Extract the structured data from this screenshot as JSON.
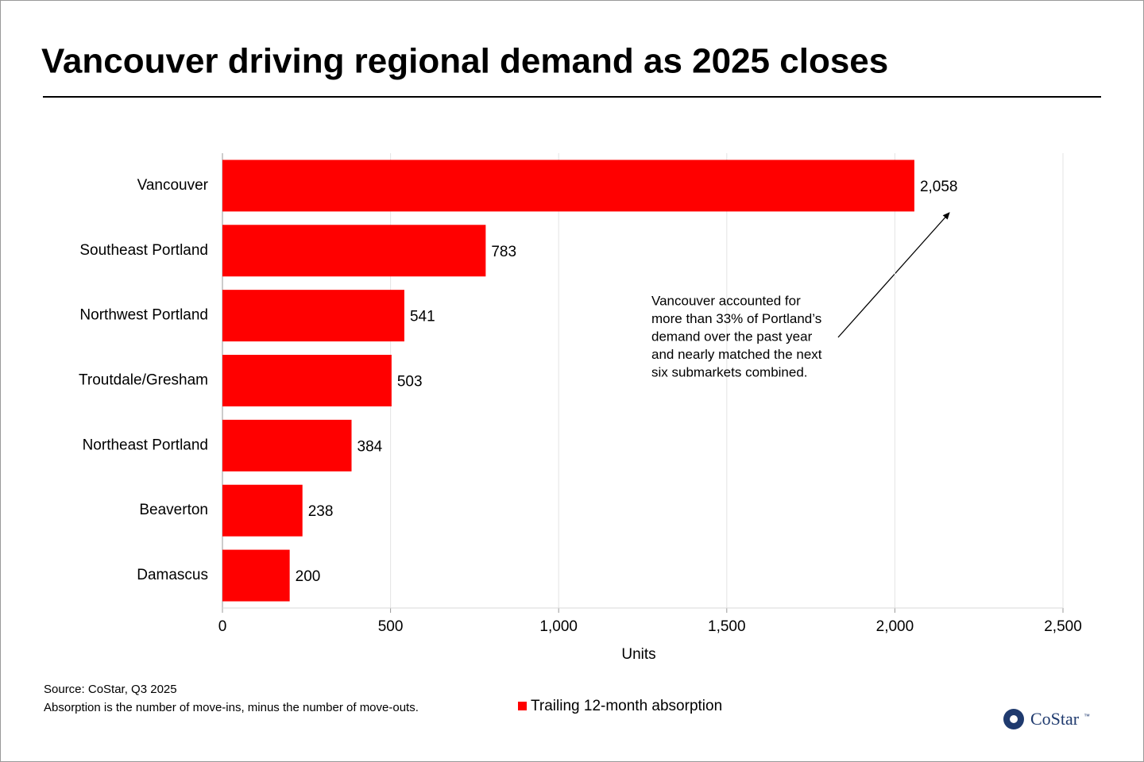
{
  "chart_data": {
    "type": "bar",
    "orientation": "horizontal",
    "title": "Vancouver driving regional demand as 2025 closes",
    "categories": [
      "Vancouver",
      "Southeast Portland",
      "Northwest Portland",
      "Troutdale/Gresham",
      "Northeast Portland",
      "Beaverton",
      "Damascus"
    ],
    "series": [
      {
        "name": "Trailing 12-month absorption",
        "color": "#ff0000",
        "values": [
          2058,
          783,
          541,
          503,
          384,
          238,
          200
        ],
        "value_labels": [
          "2,058",
          "783",
          "541",
          "503",
          "384",
          "238",
          "200"
        ]
      }
    ],
    "xlim": [
      0,
      2500
    ],
    "xticks": [
      0,
      500,
      {
        "value": 1000,
        "label": "1,000"
      },
      {
        "value": 1500,
        "label": "1,500"
      },
      {
        "value": 2000,
        "label": "2,000"
      },
      {
        "value": 2500,
        "label": "2,500"
      }
    ],
    "xlabel": "Units",
    "grid": true,
    "annotation": [
      "Vancouver accounted for",
      "more than 33% of Portland’s",
      "demand over the past year",
      "and nearly matched the next",
      "six submarkets combined."
    ],
    "source": [
      "Source: CoStar, Q3 2025",
      "Absorption is the number of move-ins, minus the number of move-outs."
    ],
    "logo": "CoStar",
    "logo_mark": "™"
  }
}
